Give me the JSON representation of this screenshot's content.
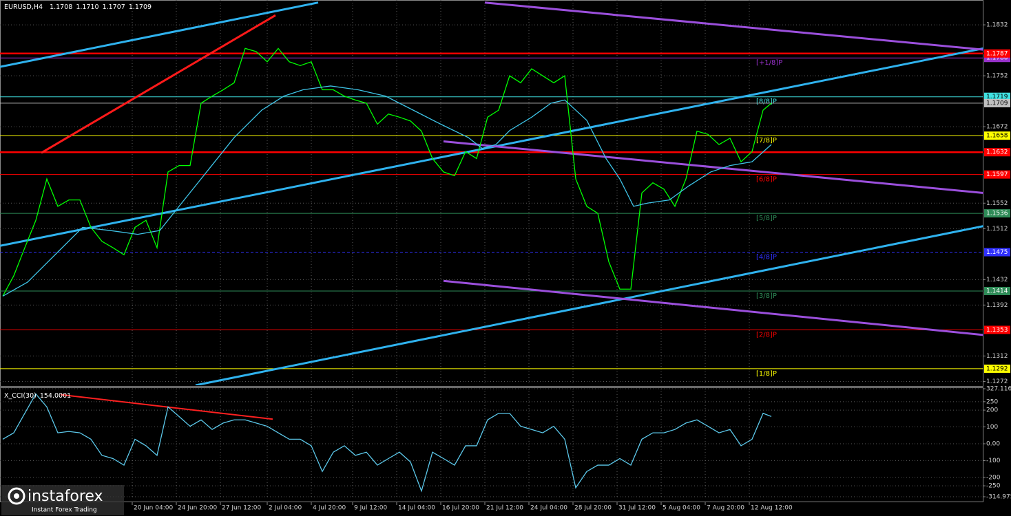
{
  "chart_data": [
    {
      "type": "line",
      "title": "EURUSD,H4",
      "ohlc": [
        1.1708,
        {
          "value": 1.171,
          "label": "1.1710"
        },
        1.1707,
        1.1709
      ],
      "x": [
        1,
        5,
        9,
        13,
        17,
        21,
        25,
        29,
        33,
        37,
        41,
        45,
        49,
        53,
        57,
        61,
        65,
        69,
        73,
        77,
        81,
        85,
        89,
        93,
        97,
        101,
        105,
        109,
        113,
        117,
        121,
        125,
        129,
        133,
        137,
        141,
        145,
        149,
        153,
        157,
        161,
        165,
        169,
        173,
        177,
        181,
        185,
        189,
        193,
        197,
        201,
        205,
        209,
        213,
        217,
        221,
        225,
        229,
        233,
        237,
        241,
        245,
        249,
        253,
        257,
        261,
        265,
        269,
        273,
        277,
        280
      ],
      "xlim": [
        0,
        357
      ],
      "xticks": [
        {
          "value": 48,
          "label": "20 Jun 04:00"
        },
        {
          "value": 64,
          "label": "24 Jun 20:00"
        },
        {
          "value": 80,
          "label": "27 Jun 12:00"
        },
        {
          "value": 97,
          "label": "2 Jul 04:00"
        },
        {
          "value": 113,
          "label": "4 Jul 20:00"
        },
        {
          "value": 128,
          "label": "9 Jul 12:00"
        },
        {
          "value": 144,
          "label": "14 Jul 04:00"
        },
        {
          "value": 160,
          "label": "16 Jul 20:00"
        },
        {
          "value": 176,
          "label": "21 Jul 12:00"
        },
        {
          "value": 192,
          "label": "24 Jul 04:00"
        },
        {
          "value": 208,
          "label": "28 Jul 20:00"
        },
        {
          "value": 224,
          "label": "31 Jul 12:00"
        },
        {
          "value": 240,
          "label": "5 Aug 04:00"
        },
        {
          "value": 256,
          "label": "7 Aug 20:00"
        },
        {
          "value": 272,
          "label": "12 Aug 12:00"
        }
      ],
      "ylim": [
        1.1266,
        1.1871
      ],
      "yticks": [
        1.1832,
        1.1752,
        1.1672,
        1.1552,
        1.1512,
        1.1432,
        1.1392,
        1.1312,
        1.1272
      ],
      "grid": true,
      "series": [
        {
          "color": "#00ff00",
          "values": [
            1.1406,
            1.1438,
            1.1482,
            1.1525,
            1.159,
            1.1547,
            1.1557,
            1.1557,
            1.1514,
            1.1492,
            1.1482,
            1.1471,
            1.1514,
            1.1525,
            1.1482,
            1.1601,
            1.1611,
            1.1611,
            1.1709,
            1.172,
            1.173,
            1.1741,
            1.1795,
            1.179,
            1.1774,
            1.1795,
            1.1774,
            1.1768,
            1.1774,
            1.173,
            1.173,
            1.172,
            1.1714,
            1.1709,
            1.1676,
            1.1692,
            1.1687,
            1.1681,
            1.1665,
            1.1622,
            1.1601,
            1.1595,
            1.1633,
            1.1622,
            1.1687,
            1.1698,
            1.1752,
            1.1741,
            1.1763,
            1.1752,
            1.1741,
            1.1752,
            1.159,
            1.1547,
            1.1536,
            1.146,
            1.1417,
            1.1417,
            1.1568,
            1.1584,
            1.1574,
            1.1547,
            1.159,
            1.1665,
            1.166,
            1.1644,
            1.1654,
            1.1617,
            1.1633,
            1.1698,
            1.1709
          ]
        },
        {
          "color": "#3ec3e6",
          "x": [
            1,
            10,
            20,
            30,
            40,
            50,
            58,
            65,
            75,
            85,
            95,
            103,
            110,
            120,
            130,
            140,
            150,
            160,
            170,
            175,
            180,
            185,
            193,
            200,
            205,
            213,
            220,
            225,
            230,
            235,
            243,
            250,
            258,
            265,
            273,
            280
          ],
          "values": [
            1.1406,
            1.1428,
            1.1471,
            1.1514,
            1.1509,
            1.1503,
            1.1509,
            1.1547,
            1.1601,
            1.1655,
            1.1698,
            1.172,
            1.173,
            1.1736,
            1.173,
            1.172,
            1.1698,
            1.1676,
            1.1655,
            1.1638,
            1.1644,
            1.1666,
            1.1687,
            1.1709,
            1.1714,
            1.1682,
            1.1622,
            1.159,
            1.1547,
            1.1552,
            1.1557,
            1.1579,
            1.1601,
            1.1611,
            1.1617,
            1.1644
          ]
        }
      ],
      "trend_lines": [
        {
          "color": "#2fb2ee",
          "x": [
            0,
            115.5
          ],
          "values": [
            1.1766,
            1.1867
          ]
        },
        {
          "color": "#2fb2ee",
          "x": [
            0,
            357
          ],
          "values": [
            1.1485,
            1.1795
          ]
        },
        {
          "color": "#2fb2ee",
          "x": [
            71,
            357
          ],
          "values": [
            1.1266,
            1.1516
          ]
        },
        {
          "color": "#ff1a1a",
          "x": [
            15,
            100
          ],
          "values": [
            1.1631,
            1.1847
          ]
        },
        {
          "color": "#9b4fdc",
          "x": [
            176,
            357
          ],
          "values": [
            1.1867,
            1.1793
          ]
        },
        {
          "color": "#9b4fdc",
          "x": [
            161,
            357
          ],
          "values": [
            1.1649,
            1.1568
          ]
        },
        {
          "color": "#9b4fdc",
          "x": [
            161,
            357
          ],
          "values": [
            1.143,
            1.1345
          ]
        }
      ],
      "support_lines": [
        {
          "value": 1.1787,
          "color": "#ff0000"
        },
        {
          "value": 1.1632,
          "color": "#ff0000"
        }
      ],
      "levels": [
        {
          "value": 1.178,
          "price_label": "1.1780",
          "label": "[+1/8]P",
          "color": "#9932cc"
        },
        {
          "value": 1.1719,
          "label": "[8/8]P",
          "color": "#40e0e0"
        },
        {
          "value": 1.1658,
          "label": "[7/8]P",
          "color": "#ffff00"
        },
        {
          "value": 1.1597,
          "label": "[6/8]P",
          "color": "#ff0000"
        },
        {
          "value": 1.1536,
          "label": "[5/8]P",
          "color": "#2e8b57"
        },
        {
          "value": 1.1475,
          "label": "[4/8]P",
          "color": "#3030ff",
          "dashed": true
        },
        {
          "value": 1.1414,
          "label": "[3/8]P",
          "color": "#2e8b57"
        },
        {
          "value": 1.1353,
          "label": "[2/8]P",
          "color": "#ff0000"
        },
        {
          "value": 1.1292,
          "label": "[1/8]P",
          "color": "#ffff00"
        }
      ],
      "last_price": {
        "value": 1.1709,
        "color": "#c0c0c0"
      }
    },
    {
      "type": "line",
      "title": "X_CCI(30)",
      "current": 154.0001,
      "x": [
        1,
        5,
        9,
        13,
        17,
        21,
        25,
        29,
        33,
        37,
        41,
        45,
        49,
        53,
        57,
        61,
        65,
        69,
        73,
        77,
        81,
        85,
        89,
        93,
        97,
        101,
        105,
        109,
        113,
        117,
        121,
        125,
        129,
        133,
        137,
        141,
        145,
        149,
        153,
        157,
        161,
        165,
        169,
        173,
        177,
        181,
        185,
        189,
        193,
        197,
        201,
        205,
        209,
        213,
        217,
        221,
        225,
        229,
        233,
        237,
        241,
        245,
        249,
        253,
        257,
        261,
        265,
        269,
        273,
        277,
        280
      ],
      "xlim": [
        0,
        357
      ],
      "ylim": [
        -314.975,
        327.116
      ],
      "yticks": [
        327.116,
        250,
        200,
        100,
        {
          "value": 0,
          "label": "0.00"
        },
        -100,
        -200,
        -250,
        -314.975
      ],
      "series": [
        {
          "color": "#5cc8ea",
          "values": [
            27,
            65,
            181,
            296,
            219,
            65,
            73,
            65,
            27,
            -69,
            -88,
            -127,
            27,
            -12,
            -69,
            219,
            162,
            104,
            142,
            85,
            123,
            142,
            142,
            123,
            104,
            65,
            27,
            27,
            -12,
            -165,
            -50,
            -12,
            -69,
            -50,
            -127,
            -88,
            -50,
            -108,
            -281,
            -50,
            -88,
            -127,
            -12,
            -12,
            142,
            181,
            181,
            104,
            85,
            65,
            104,
            27,
            -262,
            -165,
            -127,
            -127,
            -88,
            -127,
            27,
            65,
            65,
            85,
            123,
            142,
            104,
            65,
            85,
            -12,
            27,
            181,
            162
          ]
        }
      ],
      "trend_lines": [
        {
          "color": "#ff2020",
          "x": [
            22,
            99
          ],
          "values": [
            292,
            146
          ]
        }
      ]
    }
  ],
  "watermark": {
    "name": "instaforex",
    "tagline": "Instant Forex Trading"
  }
}
